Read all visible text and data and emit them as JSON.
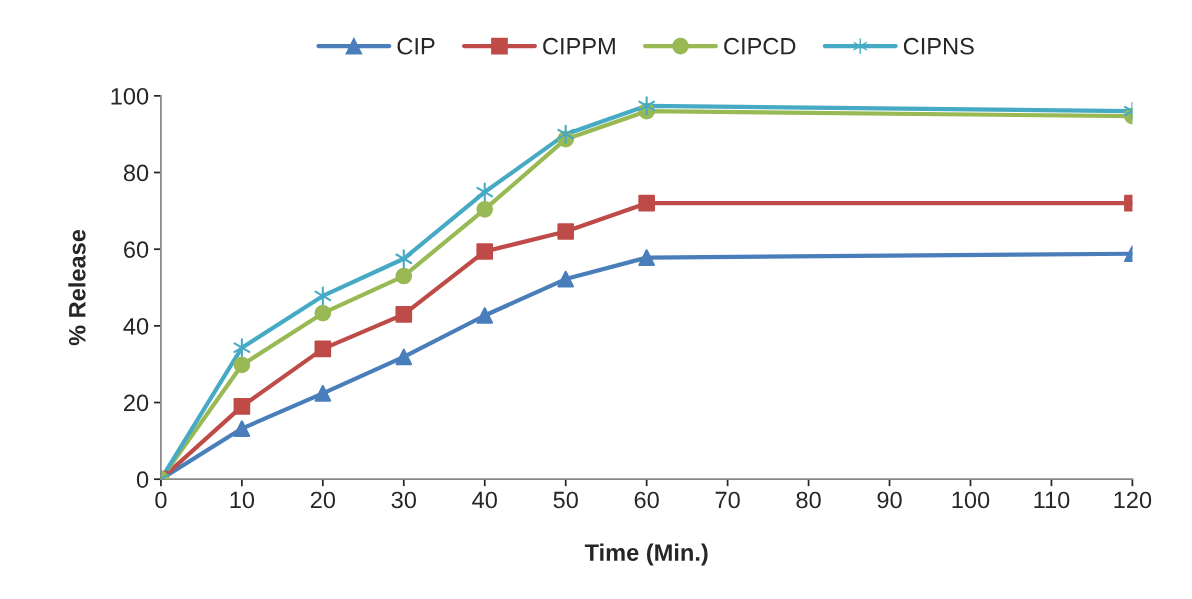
{
  "chart_data": {
    "type": "line",
    "xlabel": "Time (Min.)",
    "ylabel": "% Release",
    "x": [
      0,
      10,
      20,
      30,
      40,
      50,
      60,
      120
    ],
    "xlim": [
      0,
      120
    ],
    "xticks": [
      0,
      10,
      20,
      30,
      40,
      50,
      60,
      70,
      80,
      90,
      100,
      110,
      120
    ],
    "ylim": [
      0,
      100
    ],
    "yticks": [
      0,
      20,
      40,
      60,
      80,
      100
    ],
    "grid": false,
    "legend": "top",
    "line_style": "solid",
    "series": [
      {
        "name": "CIP",
        "color": "#4a7ebb",
        "marker": "triangle",
        "values": [
          0,
          13.2,
          22.4,
          31.9,
          42.7,
          52.2,
          57.8,
          58.8
        ]
      },
      {
        "name": "CIPPM",
        "color": "#be4b48",
        "marker": "square",
        "values": [
          0,
          19,
          34,
          43,
          59.4,
          64.6,
          72,
          72
        ]
      },
      {
        "name": "CIPCD",
        "color": "#98b954",
        "marker": "circle",
        "values": [
          0,
          29.8,
          43.3,
          53,
          70.4,
          88.7,
          96,
          94.7
        ]
      },
      {
        "name": "CIPNS",
        "color": "#46aac5",
        "marker": "cross",
        "values": [
          0,
          34.3,
          47.8,
          57.5,
          74.9,
          90,
          97.4,
          96
        ]
      }
    ]
  }
}
